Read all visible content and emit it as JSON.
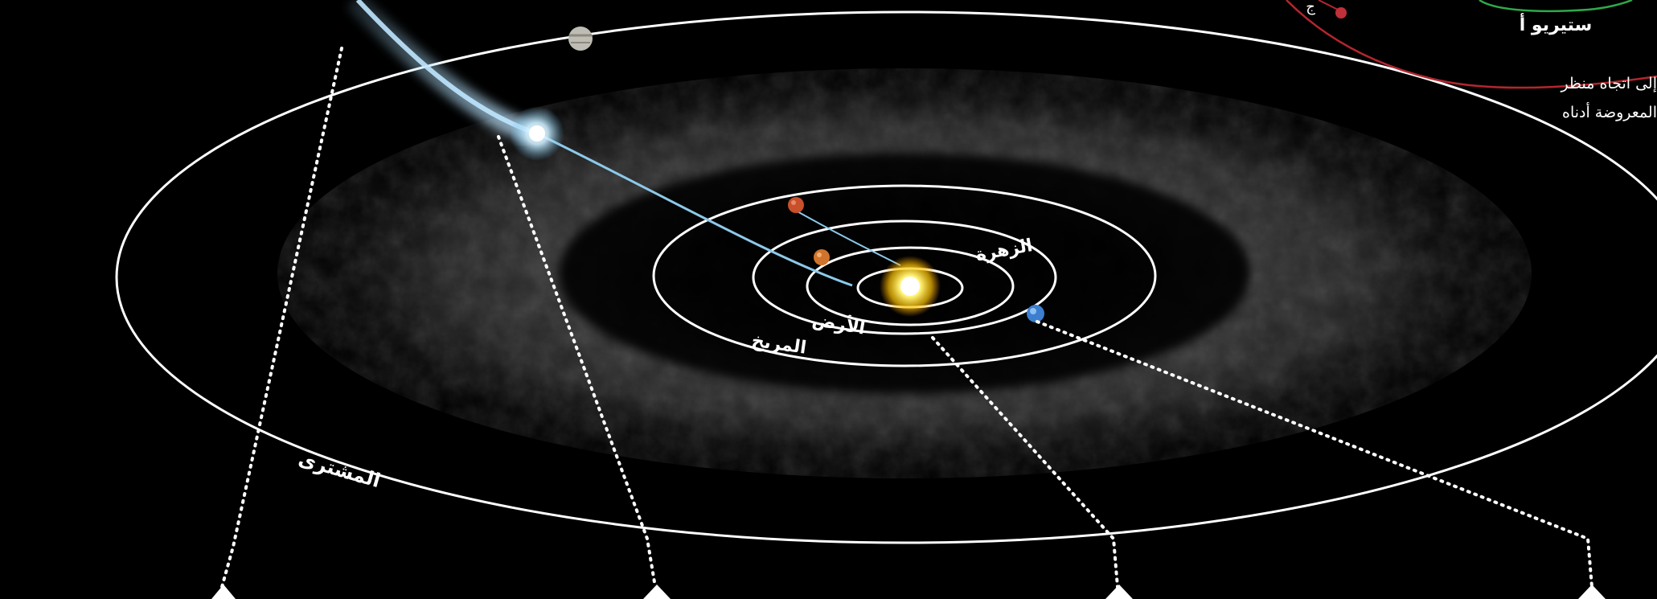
{
  "labels": {
    "venus": "الزهرة",
    "earth": "الأرض",
    "mars": "المريخ",
    "jupiter": "المشترى",
    "stereo_a": "ستيريو أ",
    "note_line1": "إلى اتجاه منظر",
    "note_line2": "المعروضة أدناه",
    "corner_fragment": "ج"
  },
  "colors": {
    "background": "#000000",
    "orbit": "#ffffff",
    "sun": "#ffd21a",
    "comet": "#9fd6f2",
    "mars": "#c8502a",
    "earth": "#3c7fd0",
    "stereo_orbit": "#b3262e",
    "stereo_ring": "#2fa84a"
  },
  "icons": {
    "sun": "sun-icon",
    "comet": "comet-icon",
    "planets": [
      "venus-planet-icon",
      "earth-planet-icon",
      "mars-planet-icon",
      "jupiter-planet-icon"
    ],
    "pointers": "triangle-marker-icon"
  }
}
